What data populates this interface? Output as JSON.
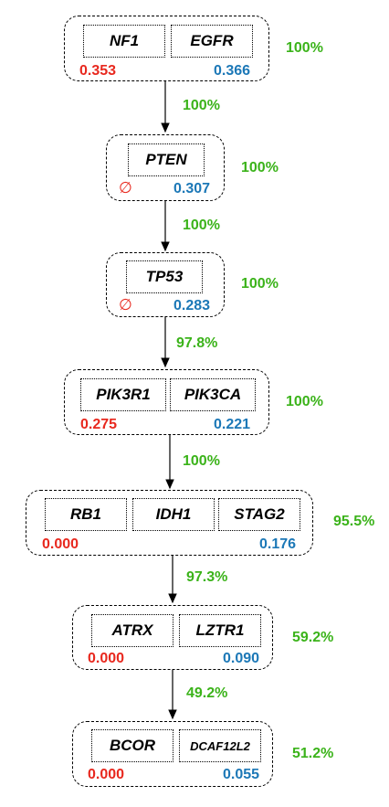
{
  "groups": [
    {
      "genes": [
        "NF1",
        "EGFR"
      ],
      "left_score": "0.353",
      "right_score": "0.366",
      "group_pct": "100%"
    },
    {
      "genes": [
        "PTEN"
      ],
      "left_score": "∅",
      "right_score": "0.307",
      "group_pct": "100%"
    },
    {
      "genes": [
        "TP53"
      ],
      "left_score": "∅",
      "right_score": "0.283",
      "group_pct": "100%"
    },
    {
      "genes": [
        "PIK3R1",
        "PIK3CA"
      ],
      "left_score": "0.275",
      "right_score": "0.221",
      "group_pct": "100%"
    },
    {
      "genes": [
        "RB1",
        "IDH1",
        "STAG2"
      ],
      "left_score": "0.000",
      "right_score": "0.176",
      "group_pct": "95.5%"
    },
    {
      "genes": [
        "ATRX",
        "LZTR1"
      ],
      "left_score": "0.000",
      "right_score": "0.090",
      "group_pct": "59.2%"
    },
    {
      "genes": [
        "BCOR",
        "DCAF12L2"
      ],
      "left_score": "0.000",
      "right_score": "0.055",
      "group_pct": "51.2%"
    }
  ],
  "edges": [
    "100%",
    "100%",
    "97.8%",
    "100%",
    "97.3%",
    "49.2%"
  ],
  "colors": {
    "left_score": "#e8281e",
    "right_score": "#1c78b7",
    "percent": "#3bb31a"
  }
}
